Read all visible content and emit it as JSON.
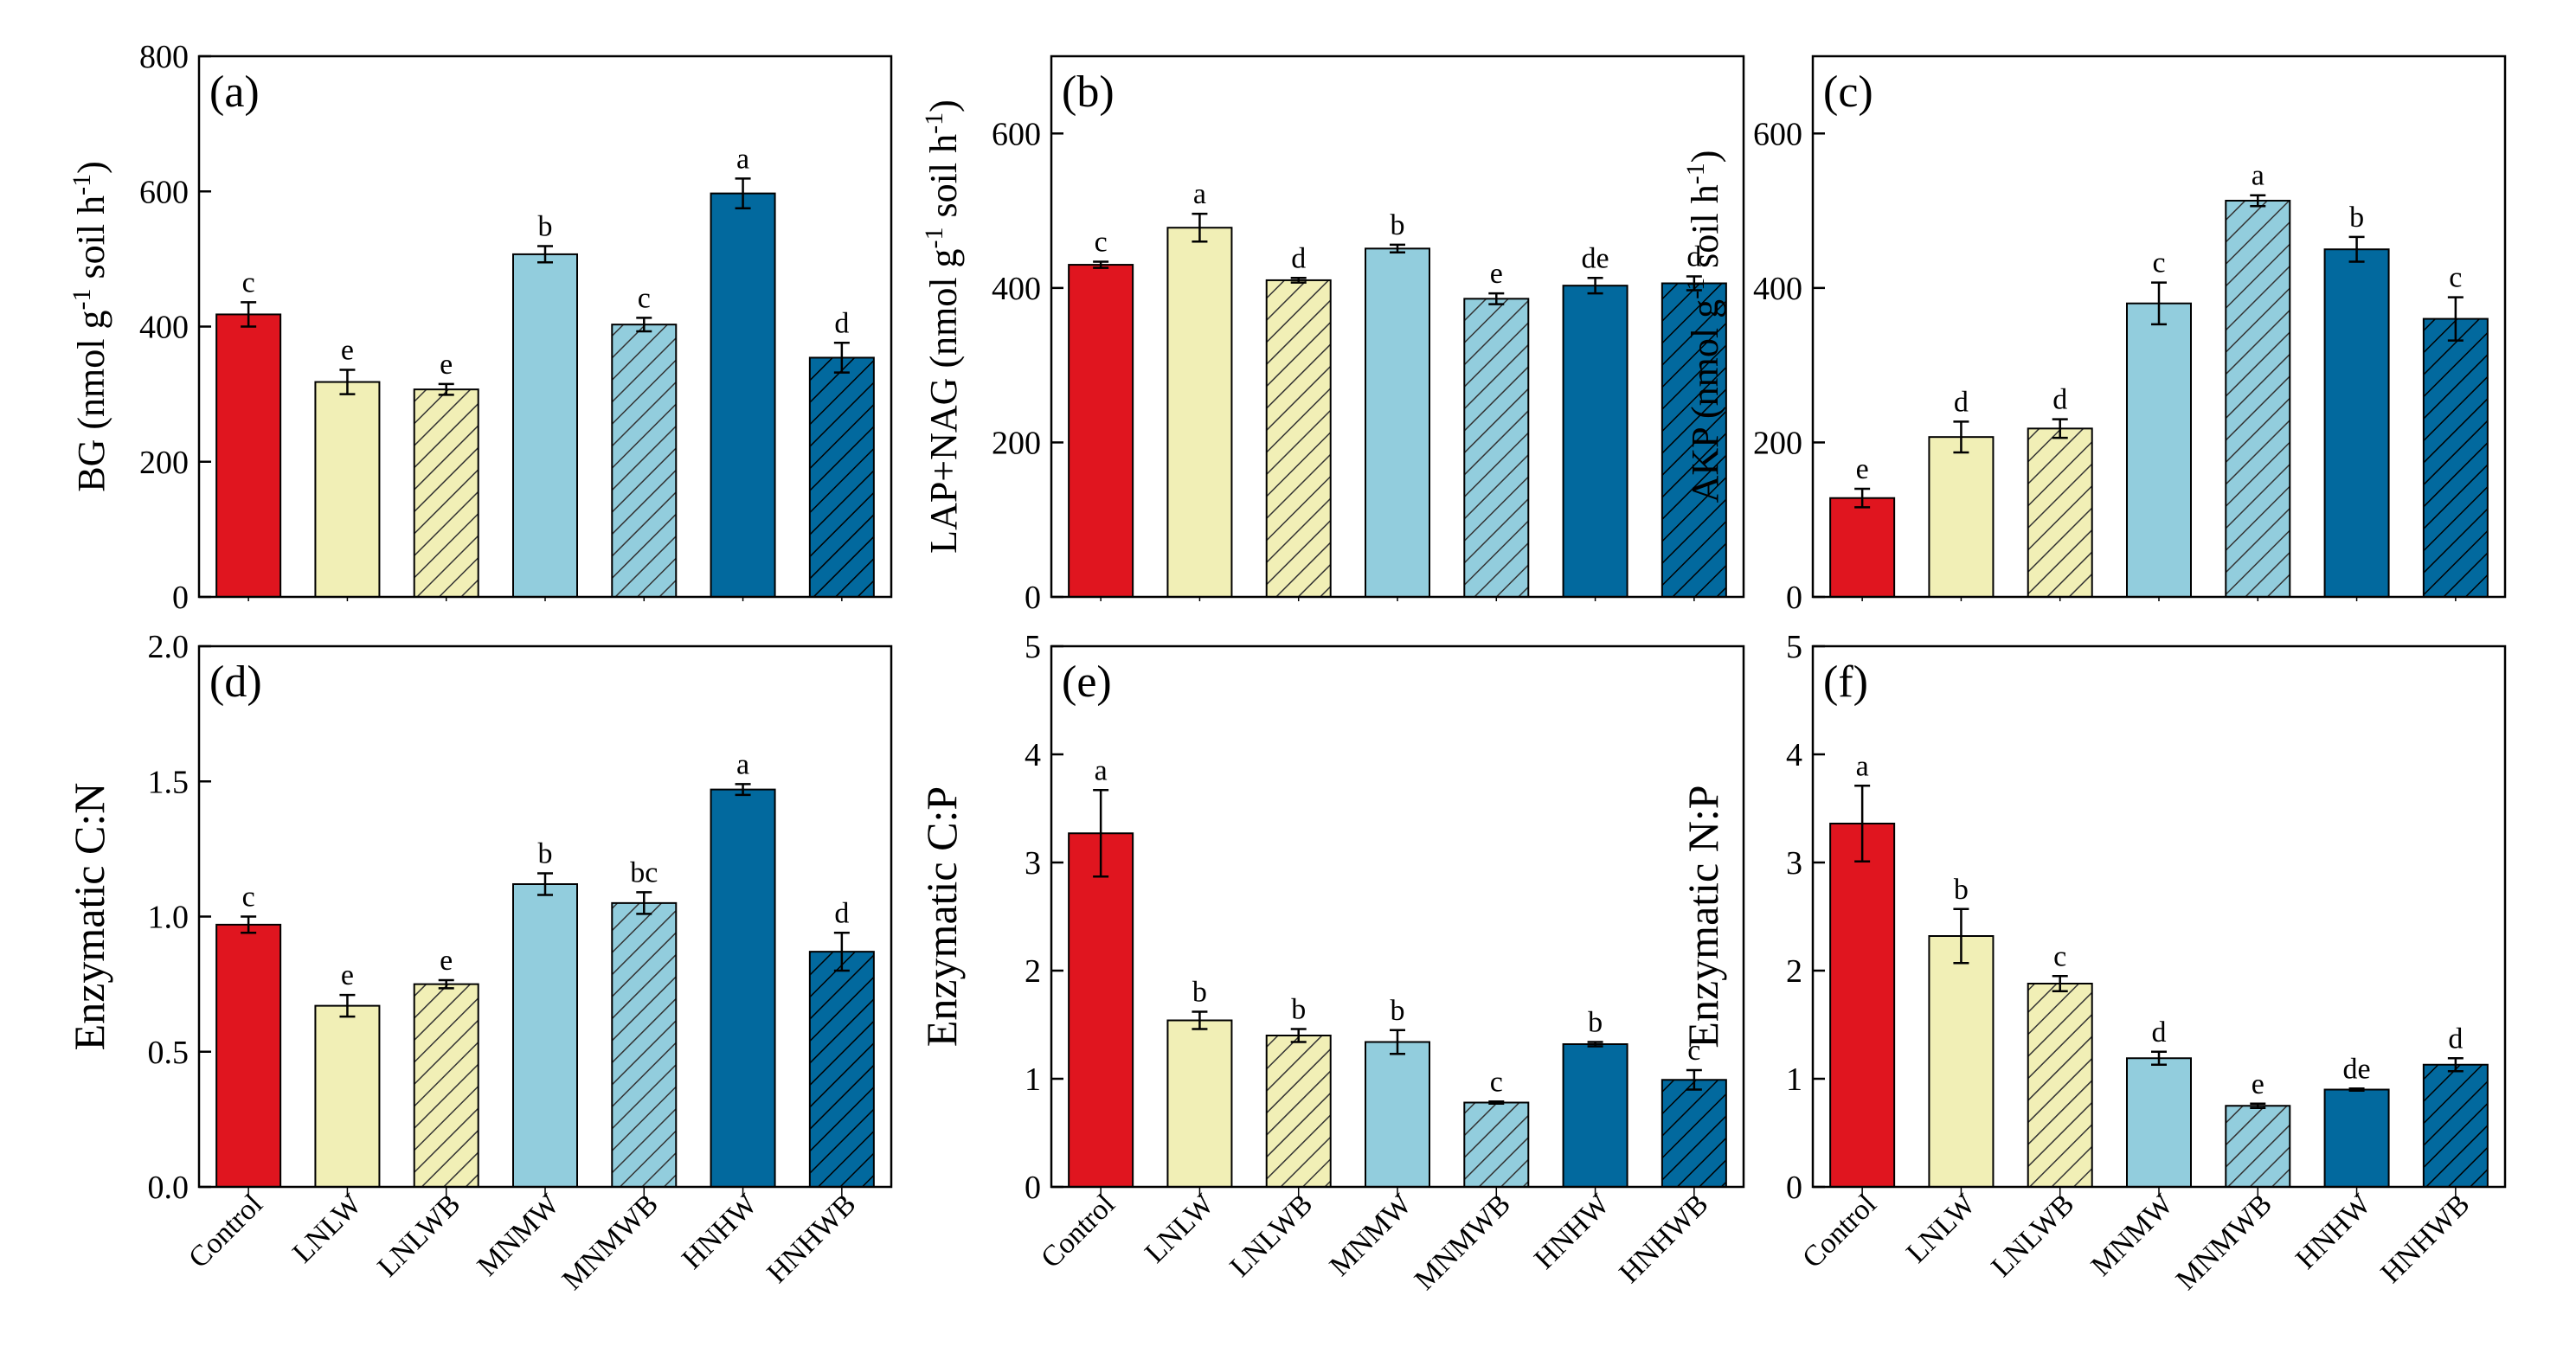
{
  "colors": {
    "Control": "#e0151f",
    "LNLW": "#f1efb6",
    "LNLWB": "#f1efb6",
    "MNMW": "#92cddd",
    "MNMWB": "#92cddd",
    "HNHW": "#02699e",
    "HNHWB": "#02699e"
  },
  "hatched": [
    false,
    false,
    true,
    false,
    true,
    false,
    true
  ],
  "chart_data": [
    {
      "type": "bar",
      "panel_label": "(a)",
      "ylabel": "BG (nmol g",
      "ylabel_sup1": "-1",
      "ylabel_mid": " soil h",
      "ylabel_sup2": "-1",
      "ylabel_end": ")",
      "ylim": [
        0,
        800
      ],
      "yticks": [
        "0",
        "200",
        "400",
        "600",
        "800"
      ],
      "ytick_values": [
        0,
        200,
        400,
        600,
        800
      ],
      "categories": [
        "Control",
        "LNLW",
        "LNLWB",
        "MNMW",
        "MNMWB",
        "HNHW",
        "HNHWB"
      ],
      "values": [
        418,
        318,
        307,
        507,
        403,
        597,
        354
      ],
      "errors": [
        18,
        18,
        8,
        12,
        10,
        22,
        22
      ],
      "letters": [
        "c",
        "e",
        "e",
        "b",
        "c",
        "a",
        "d"
      ]
    },
    {
      "type": "bar",
      "panel_label": "(b)",
      "ylabel": "LAP+NAG (nmol g",
      "ylabel_sup1": "-1",
      "ylabel_mid": " soil h",
      "ylabel_sup2": "-1",
      "ylabel_end": ")",
      "ylim": [
        0,
        700
      ],
      "yticks": [
        "0",
        "200",
        "400",
        "600"
      ],
      "ytick_values": [
        0,
        200,
        400,
        600
      ],
      "categories": [
        "Control",
        "LNLW",
        "LNLWB",
        "MNMW",
        "MNMWB",
        "HNHW",
        "HNHWB"
      ],
      "values": [
        430,
        478,
        410,
        451,
        386,
        403,
        406
      ],
      "errors": [
        4,
        18,
        3,
        5,
        7,
        10,
        9
      ],
      "letters": [
        "c",
        "a",
        "d",
        "b",
        "e",
        "de",
        "d"
      ]
    },
    {
      "type": "bar",
      "panel_label": "(c)",
      "ylabel": "AKP (nmol g",
      "ylabel_sup1": "-1",
      "ylabel_mid": " soil h",
      "ylabel_sup2": "-1",
      "ylabel_end": ")",
      "ylim": [
        0,
        700
      ],
      "yticks": [
        "0",
        "200",
        "400",
        "600"
      ],
      "ytick_values": [
        0,
        200,
        400,
        600
      ],
      "categories": [
        "Control",
        "LNLW",
        "LNLWB",
        "MNMW",
        "MNMWB",
        "HNHW",
        "HNHWB"
      ],
      "values": [
        128,
        207,
        218,
        380,
        513,
        450,
        360
      ],
      "errors": [
        12,
        20,
        12,
        27,
        7,
        16,
        28
      ],
      "letters": [
        "e",
        "d",
        "d",
        "c",
        "a",
        "b",
        "c"
      ]
    },
    {
      "type": "bar",
      "panel_label": "(d)",
      "ylabel": "Enzymatic C:N",
      "ylim": [
        0,
        2.0
      ],
      "yticks": [
        "0.0",
        "0.5",
        "1.0",
        "1.5",
        "2.0"
      ],
      "ytick_values": [
        0,
        0.5,
        1.0,
        1.5,
        2.0
      ],
      "categories": [
        "Control",
        "LNLW",
        "LNLWB",
        "MNMW",
        "MNMWB",
        "HNHW",
        "HNHWB"
      ],
      "values": [
        0.97,
        0.67,
        0.75,
        1.12,
        1.05,
        1.47,
        0.87
      ],
      "errors": [
        0.03,
        0.04,
        0.015,
        0.04,
        0.04,
        0.02,
        0.07
      ],
      "letters": [
        "c",
        "e",
        "e",
        "b",
        "bc",
        "a",
        "d"
      ]
    },
    {
      "type": "bar",
      "panel_label": "(e)",
      "ylabel": "Enzymatic C:P",
      "ylim": [
        0,
        5
      ],
      "yticks": [
        "0",
        "1",
        "2",
        "3",
        "4",
        "5"
      ],
      "ytick_values": [
        0,
        1,
        2,
        3,
        4,
        5
      ],
      "categories": [
        "Control",
        "LNLW",
        "LNLWB",
        "MNMW",
        "MNMWB",
        "HNHW",
        "HNHWB"
      ],
      "values": [
        3.27,
        1.54,
        1.4,
        1.34,
        0.78,
        1.32,
        0.99
      ],
      "errors": [
        0.4,
        0.08,
        0.06,
        0.11,
        0.01,
        0.02,
        0.09
      ],
      "letters": [
        "a",
        "b",
        "b",
        "b",
        "c",
        "b",
        "c"
      ]
    },
    {
      "type": "bar",
      "panel_label": "(f)",
      "ylabel": "Enzymatic N:P",
      "ylim": [
        0,
        5
      ],
      "yticks": [
        "0",
        "1",
        "2",
        "3",
        "4",
        "5"
      ],
      "ytick_values": [
        0,
        1,
        2,
        3,
        4,
        5
      ],
      "categories": [
        "Control",
        "LNLW",
        "LNLWB",
        "MNMW",
        "MNMWB",
        "HNHW",
        "HNHWB"
      ],
      "values": [
        3.36,
        2.32,
        1.88,
        1.19,
        0.75,
        0.9,
        1.13
      ],
      "errors": [
        0.35,
        0.25,
        0.07,
        0.06,
        0.02,
        0.01,
        0.06
      ],
      "letters": [
        "a",
        "b",
        "c",
        "d",
        "e",
        "de",
        "d"
      ]
    }
  ]
}
